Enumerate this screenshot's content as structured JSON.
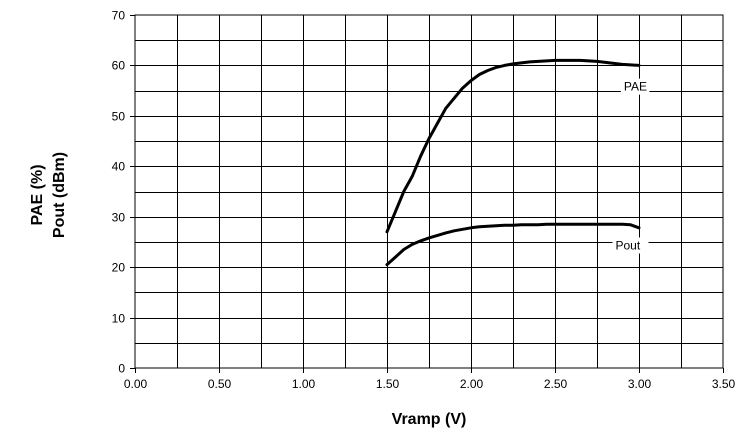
{
  "chart_data": {
    "type": "line",
    "xlabel": "Vramp (V)",
    "ylabel_lines": [
      "PAE (%)",
      "Pout (dBm)"
    ],
    "xlim": [
      0,
      3.5
    ],
    "ylim": [
      0,
      70
    ],
    "x_ticks": [
      "0.00",
      "0.50",
      "1.00",
      "1.50",
      "2.00",
      "2.50",
      "3.00",
      "3.50"
    ],
    "y_ticks": [
      "0",
      "10",
      "20",
      "30",
      "40",
      "50",
      "60",
      "70"
    ],
    "grid": true,
    "minor_x_step": 0.25,
    "minor_y_step": 5,
    "series": [
      {
        "name": "PAE",
        "color": "#000000",
        "x": [
          1.5,
          1.55,
          1.6,
          1.65,
          1.7,
          1.75,
          1.8,
          1.85,
          1.9,
          1.95,
          2.0,
          2.05,
          2.1,
          2.15,
          2.2,
          2.25,
          2.3,
          2.35,
          2.4,
          2.45,
          2.5,
          2.55,
          2.6,
          2.65,
          2.7,
          2.75,
          2.8,
          2.85,
          2.9,
          2.95,
          3.0
        ],
        "values": [
          27.0,
          31.0,
          35.0,
          38.0,
          42.0,
          45.5,
          48.5,
          51.5,
          53.5,
          55.5,
          57.0,
          58.2,
          59.0,
          59.6,
          60.0,
          60.3,
          60.5,
          60.7,
          60.8,
          60.9,
          61.0,
          61.0,
          61.0,
          61.0,
          60.9,
          60.8,
          60.6,
          60.4,
          60.2,
          60.1,
          60.0
        ]
      },
      {
        "name": "Pout",
        "color": "#000000",
        "x": [
          1.5,
          1.55,
          1.6,
          1.65,
          1.7,
          1.75,
          1.8,
          1.85,
          1.9,
          1.95,
          2.0,
          2.05,
          2.1,
          2.15,
          2.2,
          2.25,
          2.3,
          2.35,
          2.4,
          2.45,
          2.5,
          2.55,
          2.6,
          2.65,
          2.7,
          2.75,
          2.8,
          2.85,
          2.9,
          2.95,
          3.0
        ],
        "values": [
          20.5,
          22.0,
          23.5,
          24.5,
          25.2,
          25.8,
          26.3,
          26.8,
          27.2,
          27.5,
          27.8,
          28.0,
          28.1,
          28.2,
          28.3,
          28.3,
          28.4,
          28.4,
          28.4,
          28.5,
          28.5,
          28.5,
          28.5,
          28.5,
          28.5,
          28.5,
          28.5,
          28.5,
          28.5,
          28.4,
          27.8
        ]
      }
    ],
    "series_labels": [
      {
        "text": "PAE",
        "x": 2.91,
        "y": 55.0
      },
      {
        "text": "Pout",
        "x": 2.86,
        "y": 23.5
      }
    ]
  }
}
